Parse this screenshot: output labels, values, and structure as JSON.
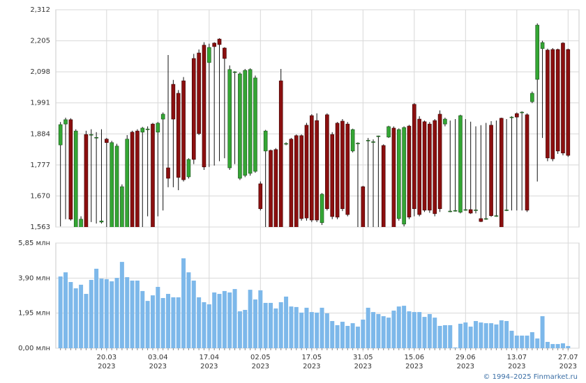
{
  "chart_data": {
    "type": "candlestick",
    "categories": [
      null,
      null,
      null,
      null,
      null,
      null,
      null,
      null,
      null,
      "20.03",
      null,
      null,
      null,
      null,
      null,
      null,
      null,
      null,
      null,
      "03.04",
      null,
      null,
      null,
      null,
      null,
      null,
      null,
      null,
      null,
      "17.04",
      null,
      null,
      null,
      null,
      null,
      null,
      null,
      null,
      null,
      "02.05",
      null,
      null,
      null,
      null,
      null,
      null,
      null,
      null,
      null,
      "17.05",
      null,
      null,
      null,
      null,
      null,
      null,
      null,
      null,
      null,
      "31.05",
      null,
      null,
      null,
      null,
      null,
      null,
      null,
      null,
      null,
      "15.06",
      null,
      null,
      null,
      null,
      null,
      null,
      null,
      null,
      null,
      "29.06",
      null,
      null,
      null,
      null,
      null,
      null,
      null,
      null,
      null,
      "13.07",
      null,
      null,
      null,
      null,
      null,
      null,
      null,
      null,
      null,
      "27.07"
    ],
    "year": "2023",
    "open": [
      1846,
      1918,
      1933,
      1560,
      1558,
      1882,
      1880,
      1870,
      1580,
      1866,
      1555,
      1555,
      1555,
      1555,
      1890,
      1894,
      1890,
      1899,
      1918,
      1890,
      1935,
      1767,
      2055,
      2024,
      2067,
      1736,
      2144,
      2163,
      2190,
      2130,
      2197,
      2211,
      2180,
      1767,
      2096,
      1731,
      1741,
      1748,
      1755,
      1712,
      1825,
      1827,
      1830,
      2067,
      1849,
      1866,
      1878,
      1878,
      1914,
      1947,
      1930,
      1578,
      1950,
      1882,
      1921,
      1928,
      1918,
      1825,
      1850,
      1702,
      1860,
      1855,
      1875,
      1844,
      1873,
      1904,
      1592,
      1573,
      1911,
      1986,
      1935,
      1926,
      1918,
      1930,
      1952,
      1918,
      1616,
      1618,
      1614,
      1621,
      1623,
      1620,
      1592,
      1590,
      1914,
      1600,
      1938,
      1620,
      1940,
      1954,
      1957,
      1950,
      1995,
      2072,
      2178,
      2173,
      2175,
      2175,
      2197,
      2175
    ],
    "high": [
      1925,
      1940,
      1938,
      1900,
      1600,
      1895,
      1900,
      1890,
      1900,
      1870,
      1860,
      1850,
      1710,
      1880,
      1895,
      1900,
      1908,
      1910,
      1922,
      1925,
      1958,
      2156,
      2070,
      2035,
      2080,
      1800,
      2160,
      2175,
      2200,
      2195,
      2200,
      2214,
      2183,
      2120,
      2100,
      2096,
      2108,
      2110,
      2085,
      1720,
      1898,
      1830,
      1835,
      2108,
      1855,
      1870,
      1882,
      1882,
      1922,
      1952,
      1955,
      1680,
      1955,
      1890,
      1925,
      1935,
      1925,
      1902,
      1855,
      1705,
      1870,
      1865,
      1878,
      1848,
      1912,
      1910,
      1903,
      1910,
      1915,
      1990,
      1945,
      1930,
      1925,
      1935,
      1965,
      1940,
      1930,
      1935,
      1950,
      1935,
      1926,
      1910,
      1914,
      1922,
      1928,
      1930,
      1940,
      1935,
      1945,
      1958,
      1962,
      1955,
      2030,
      2265,
      2205,
      2178,
      2180,
      2178,
      2200,
      2178
    ],
    "low": [
      1565,
      1590,
      1585,
      1550,
      1550,
      1545,
      1580,
      1575,
      1575,
      1560,
      1545,
      1540,
      1545,
      1545,
      1540,
      1540,
      1560,
      1600,
      1540,
      1600,
      1620,
      1700,
      1700,
      1690,
      1720,
      1730,
      1780,
      1880,
      1760,
      1770,
      1775,
      1790,
      1800,
      1760,
      1780,
      1725,
      1735,
      1740,
      1750,
      1620,
      1560,
      1540,
      1540,
      1540,
      1845,
      1540,
      1540,
      1585,
      1585,
      1580,
      1580,
      1570,
      1620,
      1590,
      1590,
      1618,
      1600,
      1820,
      1560,
      1540,
      1560,
      1560,
      1560,
      1540,
      1870,
      1540,
      1585,
      1565,
      1590,
      1600,
      1600,
      1615,
      1612,
      1600,
      1615,
      1910,
      1614,
      1616,
      1610,
      1619,
      1608,
      1610,
      1580,
      1588,
      1598,
      1598,
      1540,
      1618,
      1620,
      1620,
      1620,
      1615,
      1990,
      1720,
      1870,
      1790,
      1790,
      1815,
      1810,
      1805
    ],
    "close": [
      1916,
      1933,
      1590,
      1894,
      1590,
      1555,
      1882,
      1872,
      1584,
      1854,
      1854,
      1842,
      1702,
      1866,
      1550,
      1545,
      1904,
      1901,
      1550,
      1921,
      1952,
      1731,
      1935,
      1734,
      1726,
      1796,
      1796,
      1885,
      1770,
      2182,
      2185,
      2192,
      2144,
      2106,
      2098,
      2091,
      2103,
      2106,
      2077,
      1626,
      1894,
      1550,
      1550,
      1550,
      1851,
      1550,
      1550,
      1592,
      1594,
      1587,
      1587,
      1676,
      1626,
      1599,
      1597,
      1626,
      1606,
      1899,
      1852,
      1550,
      1862,
      1857,
      1877,
      1550,
      1909,
      1550,
      1899,
      1906,
      1597,
      1626,
      1606,
      1621,
      1621,
      1609,
      1626,
      1935,
      1618,
      1620,
      1947,
      1623,
      1611,
      1622,
      1582,
      1592,
      1602,
      1602,
      1550,
      1622,
      1942,
      1942,
      1959,
      1621,
      2024,
      2259,
      2199,
      1801,
      1798,
      1825,
      1818,
      1810
    ],
    "up_color": "#34a634",
    "down_color": "#8b0f0f",
    "ylim": [
      1563,
      2312
    ],
    "yticks": [
      {
        "value": 1563,
        "label": "1,563"
      },
      {
        "value": 1670,
        "label": "1,670"
      },
      {
        "value": 1777,
        "label": "1,777"
      },
      {
        "value": 1884,
        "label": "1,884"
      },
      {
        "value": 1991,
        "label": "1,991"
      },
      {
        "value": 2098,
        "label": "2,098"
      },
      {
        "value": 2205,
        "label": "2,205"
      },
      {
        "value": 2312,
        "label": "2,312"
      }
    ],
    "grid": true,
    "volume": {
      "color": "#7db8ea",
      "values": [
        3.99,
        4.22,
        3.68,
        3.33,
        3.53,
        3.02,
        3.8,
        4.42,
        3.87,
        3.84,
        3.72,
        3.91,
        4.8,
        3.95,
        3.76,
        3.76,
        3.18,
        2.63,
        2.94,
        3.41,
        2.79,
        3.02,
        2.83,
        2.83,
        5.0,
        4.22,
        3.76,
        2.83,
        2.56,
        2.44,
        3.1,
        3.02,
        3.18,
        3.1,
        3.29,
        2.05,
        2.13,
        3.25,
        2.71,
        3.22,
        2.52,
        2.52,
        2.21,
        2.56,
        2.87,
        2.32,
        2.29,
        1.98,
        2.25,
        2.01,
        1.98,
        2.25,
        1.94,
        1.51,
        1.28,
        1.47,
        1.24,
        1.39,
        1.2,
        1.59,
        2.25,
        2.01,
        1.9,
        1.78,
        1.7,
        2.09,
        2.32,
        2.36,
        2.05,
        2.01,
        2.01,
        1.74,
        1.9,
        1.7,
        1.24,
        1.28,
        1.28,
        0.04,
        1.36,
        1.43,
        1.2,
        1.51,
        1.43,
        1.39,
        1.39,
        1.32,
        1.55,
        1.51,
        0.97,
        0.7,
        0.7,
        0.7,
        0.89,
        0.54,
        1.78,
        0.35,
        0.23,
        0.23,
        0.27,
        0.12
      ],
      "ylim": [
        0,
        5.85
      ],
      "yticks": [
        {
          "value": 0,
          "label": "0,00 млн"
        },
        {
          "value": 1.95,
          "label": "1,95 млн"
        },
        {
          "value": 3.9,
          "label": "3,90 млн"
        },
        {
          "value": 5.85,
          "label": "5,85 млн"
        }
      ]
    }
  },
  "credit": "© 1994–2025 Finmarket.ru"
}
